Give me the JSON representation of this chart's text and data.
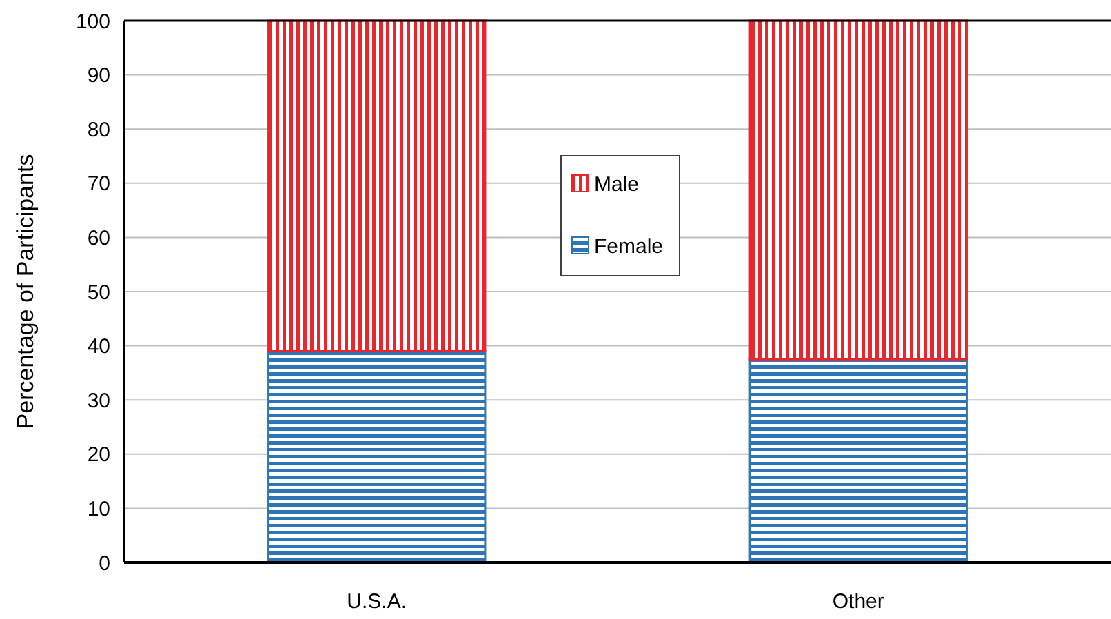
{
  "chart_data": {
    "type": "bar",
    "stacked": true,
    "ylabel": "Percentage of Participants",
    "categories": [
      "U.S.A.",
      "Other"
    ],
    "series": [
      {
        "name": "Female",
        "color": "#2e75b6",
        "values": [
          39,
          37.5
        ]
      },
      {
        "name": "Male",
        "color": "#e8262b",
        "values": [
          61,
          62.5
        ]
      }
    ],
    "ylim": [
      0,
      100
    ],
    "yticks": [
      0,
      10,
      20,
      30,
      40,
      50,
      60,
      70,
      80,
      90,
      100
    ],
    "grid": "y",
    "legend": "center"
  }
}
